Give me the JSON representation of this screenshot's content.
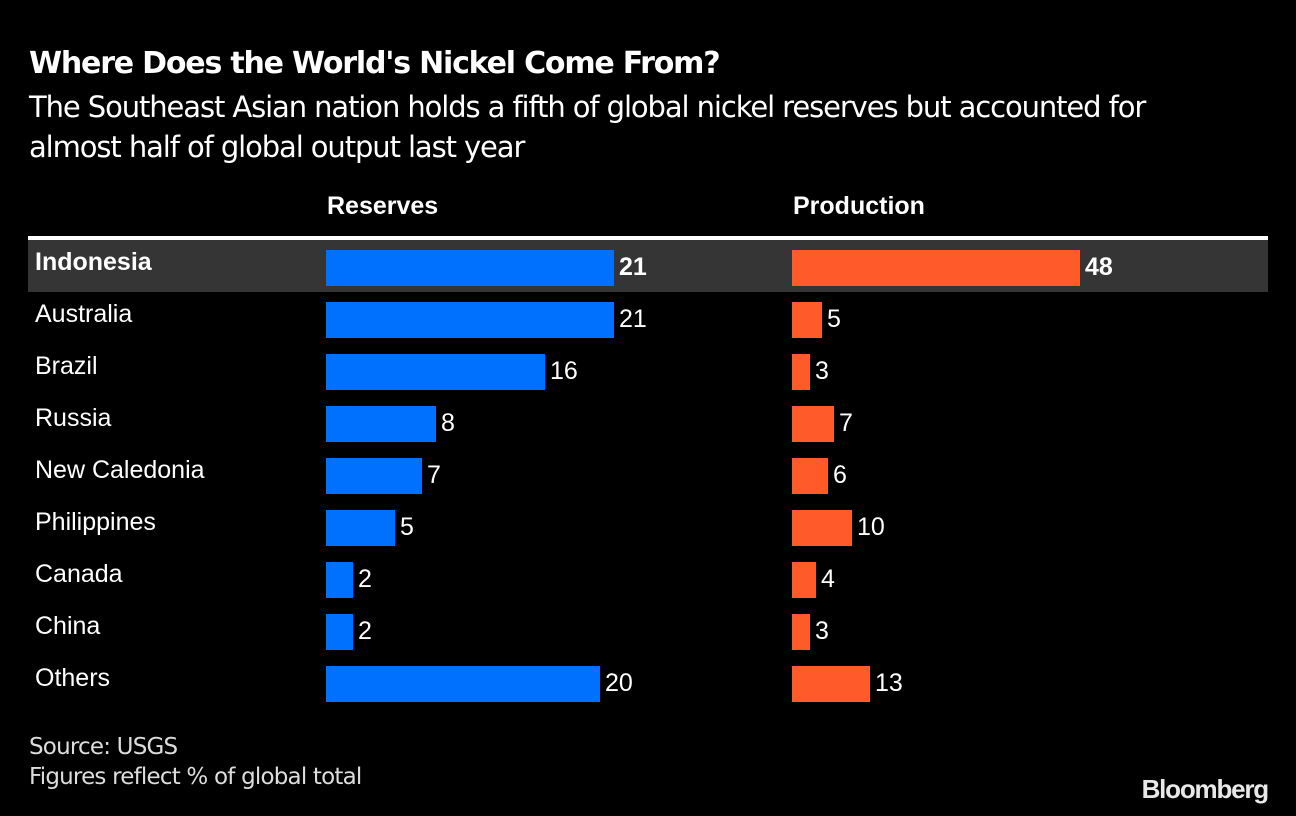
{
  "chart_data": {
    "type": "bar",
    "title": "Where Does the World's Nickel Come From?",
    "subtitle": "The Southeast Asian nation holds a fifth of global nickel reserves but accounted for almost half of global output last year",
    "categories": [
      "Indonesia",
      "Australia",
      "Brazil",
      "Russia",
      "New Caledonia",
      "Philippines",
      "Canada",
      "China",
      "Others"
    ],
    "highlight": "Indonesia",
    "series": [
      {
        "name": "Reserves",
        "values": [
          21,
          21,
          16,
          8,
          7,
          5,
          2,
          2,
          20
        ],
        "color": "#0070ff"
      },
      {
        "name": "Production",
        "values": [
          48,
          5,
          3,
          7,
          6,
          10,
          4,
          3,
          13
        ],
        "color": "#ff5a2a"
      }
    ],
    "unit": "% of global total",
    "xlabel": "",
    "ylabel": "",
    "grid": false,
    "legend": "none"
  },
  "footer": {
    "source": "Source: USGS",
    "note": "Figures reflect % of global total"
  },
  "brand": "Bloomberg",
  "colors": {
    "reserves": "#0070ff",
    "production": "#ff5a2a",
    "highlight_row": "#353535",
    "background": "#000000"
  }
}
